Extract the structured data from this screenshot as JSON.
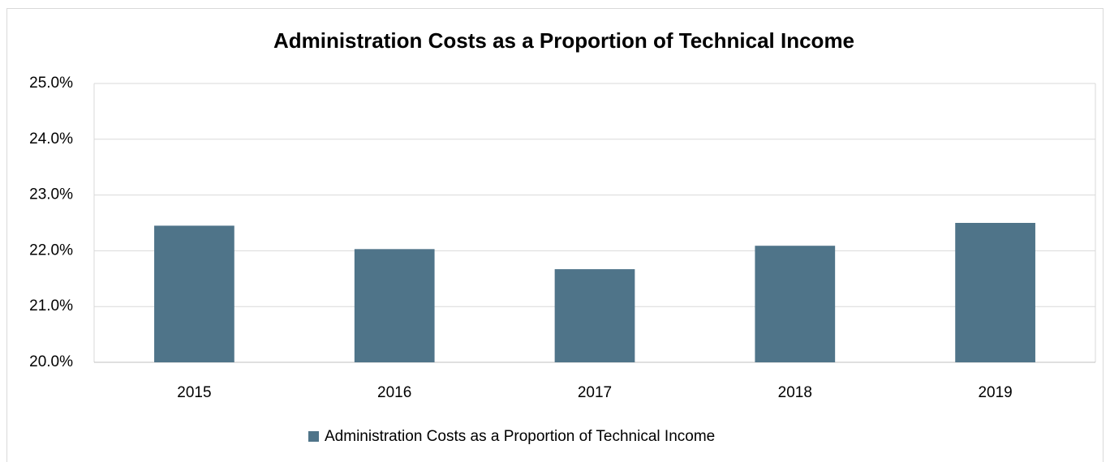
{
  "chart_data": {
    "type": "bar",
    "title": "Administration Costs as a Proportion of Technical Income",
    "categories": [
      "2015",
      "2016",
      "2017",
      "2018",
      "2019"
    ],
    "series": [
      {
        "name": "Administration Costs as a Proportion of Technical Income",
        "color": "#4f7489",
        "values": [
          22.45,
          22.03,
          21.67,
          22.09,
          22.5
        ]
      }
    ],
    "ylim": [
      20,
      25
    ],
    "yticks": [
      {
        "value": 20,
        "label": "20.0%"
      },
      {
        "value": 21,
        "label": "21.0%"
      },
      {
        "value": 22,
        "label": "22.0%"
      },
      {
        "value": 23,
        "label": "23.0%"
      },
      {
        "value": 24,
        "label": "24.0%"
      },
      {
        "value": 25,
        "label": "25.0%"
      }
    ],
    "grid": true,
    "legend": "bottom"
  }
}
